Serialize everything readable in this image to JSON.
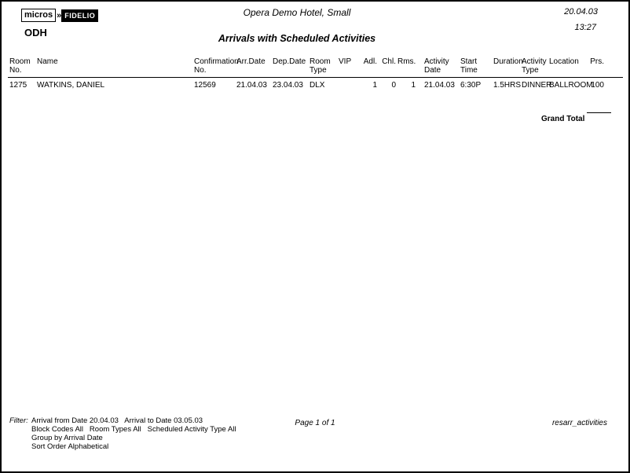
{
  "header": {
    "logo_micros": "micros",
    "logo_arrow": "»",
    "logo_fidelio": "FIDELIO",
    "property_code": "ODH",
    "hotel_name": "Opera Demo Hotel, Small",
    "report_date": "20.04.03",
    "report_time": "13:27",
    "report_title": "Arrivals with Scheduled Activities"
  },
  "table": {
    "columns": [
      "Room\nNo.",
      "Name",
      "Confirmation\nNo.",
      "Arr.Date",
      "Dep.Date",
      "Room\nType",
      "VIP",
      "Adl.",
      "Chl.",
      "Rms.",
      "Activity\nDate",
      "Start Time",
      "Duration",
      "Activity\nType",
      "Location",
      "Prs."
    ],
    "rows": [
      [
        "1275",
        "WATKINS, DANIEL",
        "12569",
        "21.04.03",
        "23.04.03",
        "DLX",
        "",
        "1",
        "0",
        "1",
        "21.04.03",
        "6:30P",
        "1.5HRS",
        "DINNER",
        "BALLROOM",
        "100"
      ]
    ]
  },
  "totals": {
    "grand_total_label": "Grand Total"
  },
  "footer": {
    "filter_label": "Filter:",
    "filter_lines": [
      "Arrival from Date 20.04.03   Arrival to Date 03.05.03",
      "Block Codes All   Room Types All   Scheduled Activity Type All",
      "Group by Arrival Date",
      "Sort Order Alphabetical"
    ],
    "page_info": "Page 1 of 1",
    "report_id": "resarr_activities"
  }
}
